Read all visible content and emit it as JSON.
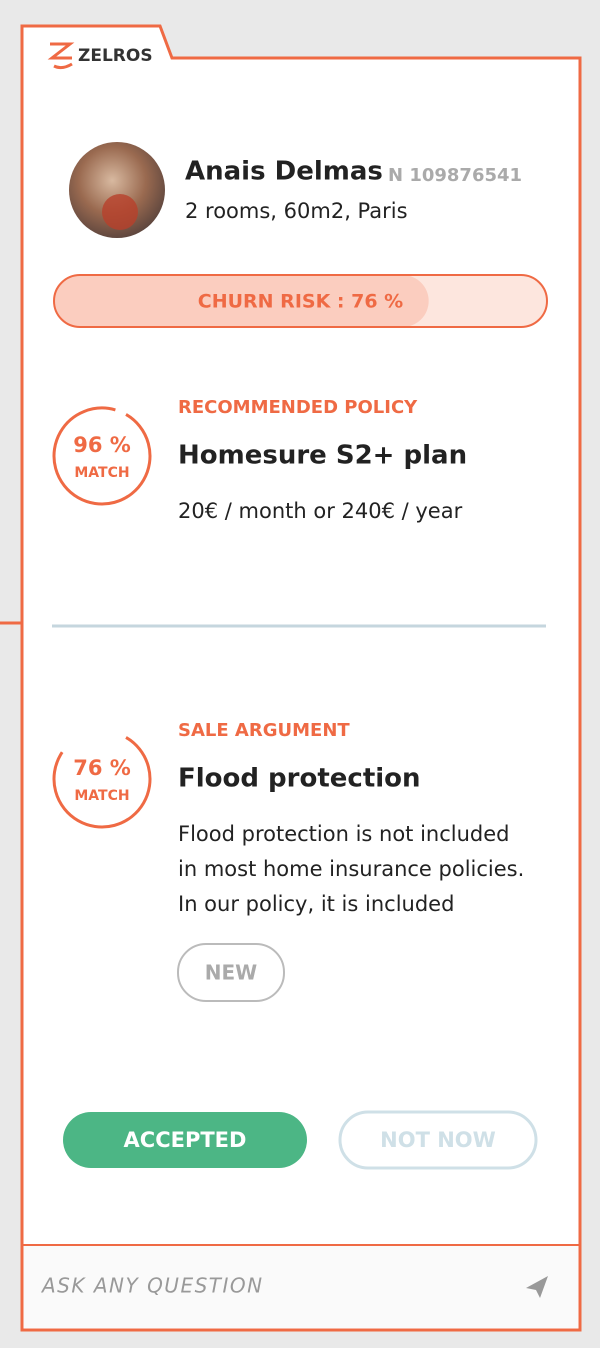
{
  "brand": "ZELROS",
  "customer": {
    "name": "Anais Delmas",
    "id": "N 109876541",
    "details": "2 rooms, 60m2, Paris"
  },
  "churn_risk": {
    "label": "CHURN RISK : 76 %",
    "value": 76
  },
  "recommendations": [
    {
      "match": {
        "value": 96,
        "label": "96 %",
        "caption": "MATCH"
      },
      "kicker": "RECOMMENDED POLICY",
      "title": "Homesure S2+ plan",
      "lines": [
        "20€ / month or 240€ / year"
      ]
    },
    {
      "match": {
        "value": 76,
        "label": "76 %",
        "caption": "MATCH"
      },
      "kicker": "SALE ARGUMENT",
      "title": "Flood protection",
      "lines": [
        "Flood protection is not included",
        "in most home insurance policies.",
        "In our policy, it is included"
      ],
      "tag": "NEW"
    }
  ],
  "actions": {
    "accept": "ACCEPTED",
    "decline": "NOT NOW"
  },
  "input": {
    "placeholder": "ASK ANY QUESTION"
  }
}
